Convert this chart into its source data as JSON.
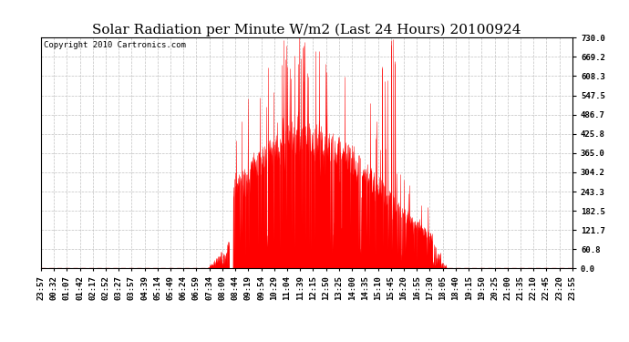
{
  "title": "Solar Radiation per Minute W/m2 (Last 24 Hours) 20100924",
  "copyright": "Copyright 2010 Cartronics.com",
  "background_color": "#ffffff",
  "plot_bg_color": "#ffffff",
  "bar_color": "#ff0000",
  "grid_color": "#aaaaaa",
  "ymin": 0.0,
  "ymax": 730.0,
  "yticks": [
    0.0,
    60.8,
    121.7,
    182.5,
    243.3,
    304.2,
    365.0,
    425.8,
    486.7,
    547.5,
    608.3,
    669.2,
    730.0
  ],
  "x_labels": [
    "23:57",
    "00:32",
    "01:07",
    "01:42",
    "02:17",
    "02:52",
    "03:27",
    "03:57",
    "04:39",
    "05:14",
    "05:49",
    "06:24",
    "06:59",
    "07:34",
    "08:09",
    "08:44",
    "09:19",
    "09:54",
    "10:29",
    "11:04",
    "11:39",
    "12:15",
    "12:50",
    "13:25",
    "14:00",
    "14:35",
    "15:10",
    "15:45",
    "16:20",
    "16:55",
    "17:30",
    "18:05",
    "18:40",
    "19:15",
    "19:50",
    "20:25",
    "21:00",
    "21:35",
    "22:10",
    "22:45",
    "23:20",
    "23:55"
  ],
  "title_fontsize": 11,
  "label_fontsize": 6.5,
  "copyright_fontsize": 6.5,
  "axhline_y": 2.0,
  "axhline_color": "#ff0000",
  "axhline_dash": [
    4,
    3
  ]
}
